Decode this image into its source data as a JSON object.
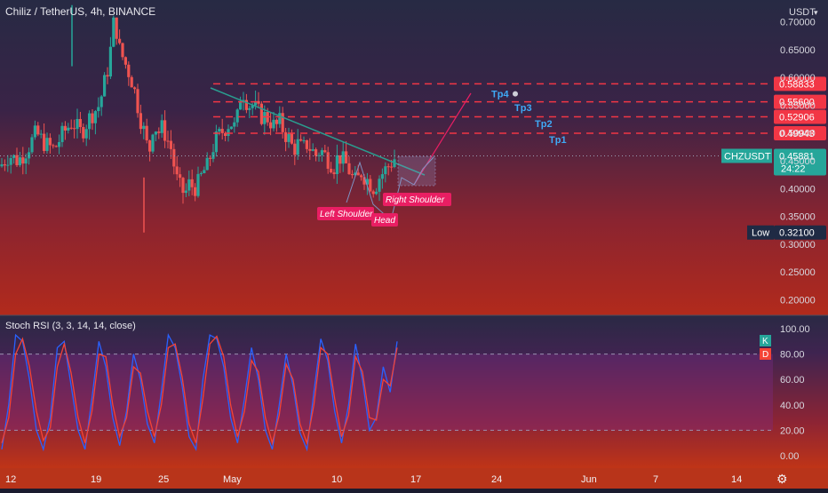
{
  "header": {
    "title": "Chiliz / TetherUS, 4h, BINANCE",
    "currency": "USDT"
  },
  "chart_data": [
    {
      "type": "candlestick",
      "title": "Chiliz / TetherUS, 4h, BINANCE",
      "y_axis_unit": "USDT",
      "ylim": [
        0.18,
        0.72
      ],
      "y_ticks": [
        "0.70000",
        "0.65000",
        "0.60000",
        "0.55000",
        "0.50000",
        "0.45000",
        "0.40000",
        "0.35000",
        "0.30000",
        "0.25000",
        "0.20000"
      ],
      "x_ticks": [
        "12",
        "19",
        "25",
        "May",
        "10",
        "17",
        "24",
        "Jun",
        "7",
        "14"
      ],
      "price_path": [
        [
          0,
          0.44
        ],
        [
          2,
          0.46
        ],
        [
          4,
          0.45
        ],
        [
          6,
          0.47
        ],
        [
          8,
          0.5
        ],
        [
          10,
          0.48
        ],
        [
          12,
          0.47
        ],
        [
          14,
          0.5
        ],
        [
          16,
          0.52
        ],
        [
          18,
          0.5
        ],
        [
          20,
          0.53
        ],
        [
          22,
          0.55
        ],
        [
          24,
          0.62
        ],
        [
          25,
          0.68
        ],
        [
          25.5,
          0.73
        ],
        [
          26,
          0.66
        ],
        [
          27,
          0.64
        ],
        [
          28,
          0.62
        ],
        [
          29,
          0.6
        ],
        [
          30,
          0.57
        ],
        [
          31,
          0.53
        ],
        [
          32,
          0.5
        ],
        [
          33,
          0.46
        ],
        [
          34,
          0.52
        ],
        [
          35,
          0.5
        ],
        [
          36,
          0.51
        ],
        [
          37,
          0.49
        ],
        [
          38,
          0.47
        ],
        [
          39,
          0.42
        ],
        [
          40,
          0.4
        ],
        [
          41,
          0.39
        ],
        [
          42,
          0.41
        ],
        [
          43,
          0.4
        ],
        [
          44,
          0.41
        ],
        [
          45,
          0.43
        ],
        [
          46,
          0.44
        ],
        [
          47,
          0.47
        ],
        [
          48,
          0.49
        ],
        [
          49,
          0.5
        ],
        [
          50,
          0.51
        ],
        [
          51,
          0.52
        ],
        [
          52,
          0.51
        ],
        [
          53,
          0.54
        ],
        [
          53.5,
          0.59
        ],
        [
          54,
          0.57
        ],
        [
          55,
          0.55
        ],
        [
          56,
          0.55
        ],
        [
          57,
          0.54
        ],
        [
          58,
          0.53
        ],
        [
          59,
          0.53
        ],
        [
          60,
          0.52
        ],
        [
          61,
          0.51
        ],
        [
          62,
          0.52
        ],
        [
          63,
          0.5
        ],
        [
          64,
          0.49
        ],
        [
          65,
          0.47
        ],
        [
          66,
          0.48
        ],
        [
          67,
          0.47
        ],
        [
          68,
          0.48
        ],
        [
          69,
          0.47
        ],
        [
          70,
          0.46
        ],
        [
          71,
          0.47
        ],
        [
          72,
          0.46
        ],
        [
          73,
          0.45
        ],
        [
          74,
          0.44
        ],
        [
          75,
          0.46
        ],
        [
          76,
          0.45
        ],
        [
          77,
          0.44
        ],
        [
          78,
          0.42
        ],
        [
          79,
          0.41
        ],
        [
          80,
          0.43
        ],
        [
          81,
          0.42
        ],
        [
          82,
          0.41
        ],
        [
          83,
          0.4
        ],
        [
          84,
          0.42
        ],
        [
          85,
          0.43
        ],
        [
          86,
          0.44
        ],
        [
          87,
          0.45
        ],
        [
          88,
          0.46
        ]
      ],
      "price_extremes": {
        "low": 0.321,
        "high": 0.73
      },
      "levels": [
        {
          "label": "Tp4",
          "value": "0.58833"
        },
        {
          "label": "",
          "value": "0.55600"
        },
        {
          "label": "Tp3",
          "value": "0.52906"
        },
        {
          "label": "Tp2",
          "value": ""
        },
        {
          "label": "Tp1",
          "value": "0.49943"
        }
      ],
      "current": {
        "symbol": "CHZUSDT",
        "value": "0.45881",
        "countdown": "24:22",
        "color": "#26a69a"
      },
      "low_marker": {
        "label": "Low",
        "value": "0.32100"
      },
      "annotations": [
        "Left Shoulder",
        "Head",
        "Right Shoulder"
      ],
      "colors": {
        "up": "#26a69a",
        "down": "#ef5350",
        "level": "#f23645",
        "trend": "#2a9d8f",
        "projection": "#e91e63"
      }
    },
    {
      "type": "line",
      "title": "Stoch RSI (3, 3, 14, 14, close)",
      "ylim": [
        0,
        100
      ],
      "y_ticks": [
        "100.00",
        "80.00",
        "60.00",
        "40.00",
        "20.00",
        "0.00"
      ],
      "bands": [
        20,
        80
      ],
      "series": [
        {
          "name": "K",
          "color": "#2962ff",
          "values": [
            5,
            40,
            95,
            90,
            60,
            20,
            5,
            30,
            85,
            90,
            55,
            20,
            5,
            45,
            90,
            70,
            30,
            8,
            35,
            80,
            60,
            25,
            10,
            50,
            95,
            85,
            55,
            15,
            5,
            60,
            95,
            92,
            70,
            30,
            10,
            45,
            85,
            60,
            20,
            5,
            40,
            80,
            55,
            18,
            5,
            50,
            92,
            75,
            35,
            10,
            40,
            88,
            60,
            20,
            30,
            70,
            50,
            90
          ]
        },
        {
          "name": "D",
          "color": "#f44336",
          "values": [
            10,
            30,
            80,
            92,
            70,
            35,
            12,
            22,
            70,
            88,
            65,
            30,
            10,
            35,
            80,
            78,
            40,
            15,
            30,
            70,
            65,
            35,
            15,
            40,
            85,
            88,
            62,
            25,
            10,
            45,
            88,
            94,
            78,
            40,
            15,
            35,
            75,
            66,
            30,
            10,
            32,
            72,
            60,
            25,
            10,
            40,
            85,
            80,
            45,
            15,
            32,
            78,
            66,
            30,
            28,
            60,
            55,
            85
          ]
        }
      ],
      "colors": {
        "band_fill": "#7e2a8a"
      }
    }
  ],
  "rsi_header": {
    "title": "Stoch RSI (3, 3, 14, 14, close)",
    "k_label": "K",
    "d_label": "D"
  }
}
